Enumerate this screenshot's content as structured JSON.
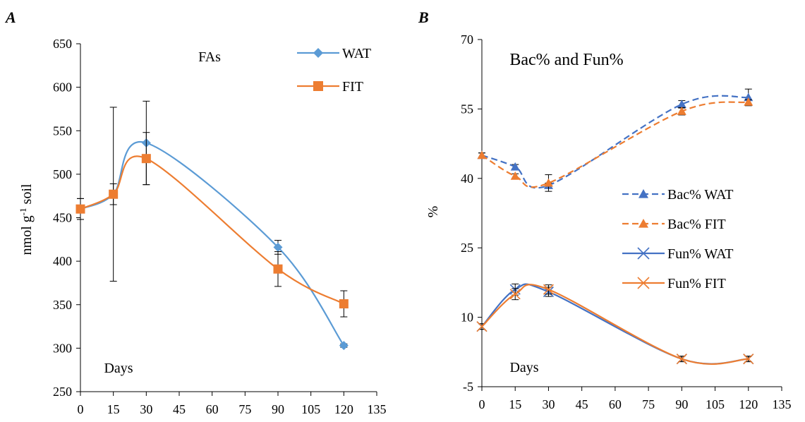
{
  "chart_data": [
    {
      "panel": "A",
      "type": "line",
      "title": "FAs",
      "xlabel": "Days",
      "ylabel": "nmol g⁻¹ soil",
      "xlim": [
        0,
        135
      ],
      "ylim": [
        250,
        650
      ],
      "xticks": [
        0,
        15,
        30,
        45,
        60,
        75,
        90,
        105,
        120,
        135
      ],
      "yticks": [
        250,
        300,
        350,
        400,
        450,
        500,
        550,
        600,
        650
      ],
      "legend_position": "top-right",
      "series": [
        {
          "name": "WAT",
          "color": "#5b9bd5",
          "marker": "diamond",
          "line": "solid",
          "x": [
            0,
            15,
            30,
            90,
            120
          ],
          "values": [
            460,
            477,
            536,
            416,
            303
          ],
          "errors": [
            12,
            12,
            48,
            8,
            2
          ]
        },
        {
          "name": "FIT",
          "color": "#ed7d31",
          "marker": "square",
          "line": "solid",
          "x": [
            0,
            15,
            30,
            90,
            120
          ],
          "values": [
            460,
            477,
            518,
            391,
            351
          ],
          "errors": [
            12,
            100,
            30,
            20,
            15
          ]
        }
      ]
    },
    {
      "panel": "B",
      "type": "line",
      "title": "Bac% and Fun%",
      "xlabel": "Days",
      "ylabel": "%",
      "xlim": [
        0,
        135
      ],
      "ylim": [
        -5,
        70
      ],
      "xticks": [
        0,
        15,
        30,
        45,
        60,
        75,
        90,
        105,
        120,
        135
      ],
      "yticks": [
        -5,
        10,
        25,
        40,
        55,
        70
      ],
      "legend_position": "right",
      "series": [
        {
          "name": "Bac% WAT",
          "color": "#4472c4",
          "marker": "triangle",
          "line": "dashed",
          "x": [
            0,
            15,
            30,
            90,
            120
          ],
          "values": [
            45,
            42.5,
            38.5,
            56,
            57.5
          ],
          "errors": [
            0.5,
            0.5,
            0.5,
            0.8,
            1.8
          ]
        },
        {
          "name": "Bac% FIT",
          "color": "#ed7d31",
          "marker": "triangle",
          "line": "dashed",
          "x": [
            0,
            15,
            30,
            90,
            120
          ],
          "values": [
            45,
            40.5,
            39,
            54.5,
            56.5
          ],
          "errors": [
            0.5,
            0.5,
            1.8,
            0.8,
            0.5
          ]
        },
        {
          "name": "Fun% WAT",
          "color": "#4472c4",
          "marker": "x",
          "line": "solid",
          "x": [
            0,
            15,
            30,
            90,
            120
          ],
          "values": [
            8,
            16,
            15.5,
            1,
            1
          ],
          "errors": [
            0.6,
            1.2,
            1.0,
            0.6,
            0.6
          ]
        },
        {
          "name": "Fun% FIT",
          "color": "#ed7d31",
          "marker": "x",
          "line": "solid",
          "x": [
            0,
            15,
            30,
            90,
            120
          ],
          "values": [
            8,
            15,
            16,
            1,
            1
          ],
          "errors": [
            0.6,
            1.2,
            1.0,
            0.6,
            0.6
          ]
        }
      ]
    }
  ]
}
